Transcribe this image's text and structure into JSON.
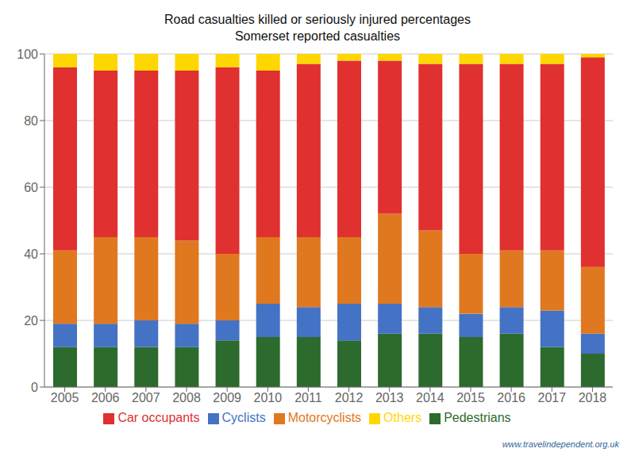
{
  "chart_data": {
    "type": "bar",
    "title": "Road casualties killed or seriously injured percentages",
    "subtitle": "Somerset reported casualties",
    "categories": [
      "2005",
      "2006",
      "2007",
      "2008",
      "2009",
      "2010",
      "2011",
      "2012",
      "2013",
      "2014",
      "2015",
      "2016",
      "2017",
      "2018"
    ],
    "series": [
      {
        "name": "Pedestrians",
        "color": "#2d6a2d",
        "values": [
          12,
          12,
          12,
          12,
          14,
          15,
          15,
          14,
          16,
          16,
          15,
          16,
          12,
          10
        ]
      },
      {
        "name": "Cyclists",
        "color": "#4472c4",
        "values": [
          7,
          7,
          8,
          7,
          6,
          10,
          9,
          11,
          9,
          8,
          7,
          8,
          11,
          6
        ]
      },
      {
        "name": "Motorcyclists",
        "color": "#e07820",
        "values": [
          22,
          26,
          25,
          25,
          20,
          20,
          21,
          20,
          27,
          23,
          18,
          17,
          18,
          20
        ]
      },
      {
        "name": "Car occupants",
        "color": "#e03030",
        "values": [
          55,
          50,
          50,
          51,
          56,
          50,
          52,
          53,
          46,
          50,
          57,
          56,
          56,
          63
        ]
      },
      {
        "name": "Others",
        "color": "#ffd700",
        "values": [
          4,
          5,
          5,
          5,
          4,
          5,
          3,
          2,
          2,
          3,
          3,
          3,
          3,
          1
        ]
      }
    ],
    "stacked": true,
    "ylim": [
      0,
      100
    ],
    "yticks": [
      0,
      20,
      40,
      60,
      80,
      100
    ],
    "grid": true,
    "legend": "bottom",
    "annotations": [
      "www.travelindependent.org.uk"
    ]
  }
}
